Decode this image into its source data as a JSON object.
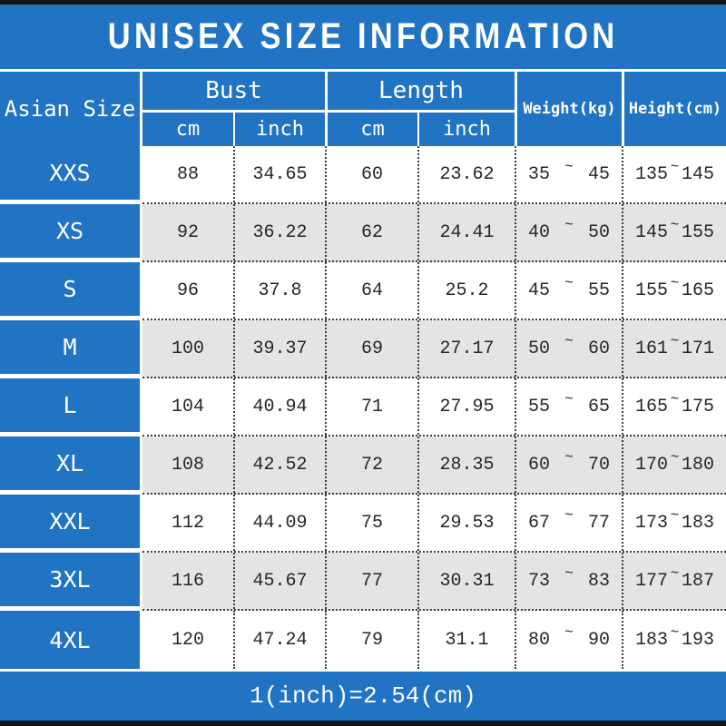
{
  "title": "UNISEX SIZE INFORMATION",
  "footer_note": "1(inch)=2.54(cm)",
  "colors": {
    "blue": "#2173c4",
    "alt_row_gray": "#e5e4e2",
    "bar_black": "#141414",
    "text_dark": "#262626",
    "white": "#ffffff"
  },
  "table": {
    "corner_header": "Asian Size",
    "tilde": "~",
    "groups": [
      {
        "label": "Bust",
        "subs": [
          "cm",
          "inch"
        ]
      },
      {
        "label": "Length",
        "subs": [
          "cm",
          "inch"
        ]
      }
    ],
    "single_headers": [
      "Weight(kg)",
      "Height(cm)"
    ],
    "rows": [
      {
        "size": "XXS",
        "bust_cm": "88",
        "bust_inch": "34.65",
        "length_cm": "60",
        "length_inch": "23.62",
        "weight_min": "35",
        "weight_max": "45",
        "height_min": "135",
        "height_max": "145"
      },
      {
        "size": "XS",
        "bust_cm": "92",
        "bust_inch": "36.22",
        "length_cm": "62",
        "length_inch": "24.41",
        "weight_min": "40",
        "weight_max": "50",
        "height_min": "145",
        "height_max": "155"
      },
      {
        "size": "S",
        "bust_cm": "96",
        "bust_inch": "37.8",
        "length_cm": "64",
        "length_inch": "25.2",
        "weight_min": "45",
        "weight_max": "55",
        "height_min": "155",
        "height_max": "165"
      },
      {
        "size": "M",
        "bust_cm": "100",
        "bust_inch": "39.37",
        "length_cm": "69",
        "length_inch": "27.17",
        "weight_min": "50",
        "weight_max": "60",
        "height_min": "161",
        "height_max": "171"
      },
      {
        "size": "L",
        "bust_cm": "104",
        "bust_inch": "40.94",
        "length_cm": "71",
        "length_inch": "27.95",
        "weight_min": "55",
        "weight_max": "65",
        "height_min": "165",
        "height_max": "175"
      },
      {
        "size": "XL",
        "bust_cm": "108",
        "bust_inch": "42.52",
        "length_cm": "72",
        "length_inch": "28.35",
        "weight_min": "60",
        "weight_max": "70",
        "height_min": "170",
        "height_max": "180"
      },
      {
        "size": "XXL",
        "bust_cm": "112",
        "bust_inch": "44.09",
        "length_cm": "75",
        "length_inch": "29.53",
        "weight_min": "67",
        "weight_max": "77",
        "height_min": "173",
        "height_max": "183"
      },
      {
        "size": "3XL",
        "bust_cm": "116",
        "bust_inch": "45.67",
        "length_cm": "77",
        "length_inch": "30.31",
        "weight_min": "73",
        "weight_max": "83",
        "height_min": "177",
        "height_max": "187"
      },
      {
        "size": "4XL",
        "bust_cm": "120",
        "bust_inch": "47.24",
        "length_cm": "79",
        "length_inch": "31.1",
        "weight_min": "80",
        "weight_max": "90",
        "height_min": "183",
        "height_max": "193"
      }
    ]
  },
  "chart_data": {
    "type": "table",
    "title": "UNISEX SIZE INFORMATION",
    "columns": [
      "Asian Size",
      "Bust cm",
      "Bust inch",
      "Length cm",
      "Length inch",
      "Weight(kg)",
      "Height(cm)"
    ],
    "rows": [
      [
        "XXS",
        "88",
        "34.65",
        "60",
        "23.62",
        "35~45",
        "135~145"
      ],
      [
        "XS",
        "92",
        "36.22",
        "62",
        "24.41",
        "40~50",
        "145~155"
      ],
      [
        "S",
        "96",
        "37.8",
        "64",
        "25.2",
        "45~55",
        "155~165"
      ],
      [
        "M",
        "100",
        "39.37",
        "69",
        "27.17",
        "50~60",
        "161~171"
      ],
      [
        "L",
        "104",
        "40.94",
        "71",
        "27.95",
        "55~65",
        "165~175"
      ],
      [
        "XL",
        "108",
        "42.52",
        "72",
        "28.35",
        "60~70",
        "170~180"
      ],
      [
        "XXL",
        "112",
        "44.09",
        "75",
        "29.53",
        "67~77",
        "173~183"
      ],
      [
        "3XL",
        "116",
        "45.67",
        "77",
        "30.31",
        "73~83",
        "177~187"
      ],
      [
        "4XL",
        "120",
        "47.24",
        "79",
        "31.1",
        "80~90",
        "183~193"
      ]
    ],
    "footnote": "1(inch)=2.54(cm)"
  }
}
